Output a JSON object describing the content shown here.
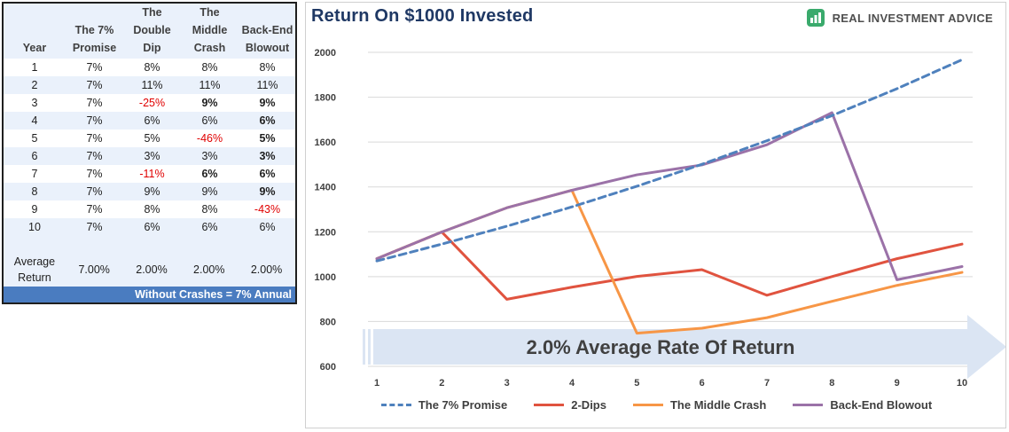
{
  "table": {
    "headers": [
      {
        "lines": [
          "Year"
        ]
      },
      {
        "lines": [
          "The 7%",
          "Promise"
        ]
      },
      {
        "lines": [
          "The",
          "Double",
          "Dip"
        ]
      },
      {
        "lines": [
          "The",
          "Middle",
          "Crash"
        ]
      },
      {
        "lines": [
          "Back-End",
          "Blowout"
        ]
      }
    ],
    "rows": [
      {
        "year": "1",
        "promise": "7%",
        "double_dip": "8%",
        "middle_crash": "8%",
        "back_end": "8%"
      },
      {
        "year": "2",
        "promise": "7%",
        "double_dip": "11%",
        "middle_crash": "11%",
        "back_end": "11%"
      },
      {
        "year": "3",
        "promise": "7%",
        "double_dip": "-25%",
        "middle_crash": "9%",
        "back_end": "9%"
      },
      {
        "year": "4",
        "promise": "7%",
        "double_dip": "6%",
        "middle_crash": "6%",
        "back_end": "6%"
      },
      {
        "year": "5",
        "promise": "7%",
        "double_dip": "5%",
        "middle_crash": "-46%",
        "back_end": "5%"
      },
      {
        "year": "6",
        "promise": "7%",
        "double_dip": "3%",
        "middle_crash": "3%",
        "back_end": "3%"
      },
      {
        "year": "7",
        "promise": "7%",
        "double_dip": "-11%",
        "middle_crash": "6%",
        "back_end": "6%"
      },
      {
        "year": "8",
        "promise": "7%",
        "double_dip": "9%",
        "middle_crash": "9%",
        "back_end": "9%"
      },
      {
        "year": "9",
        "promise": "7%",
        "double_dip": "8%",
        "middle_crash": "8%",
        "back_end": "-43%"
      },
      {
        "year": "10",
        "promise": "7%",
        "double_dip": "6%",
        "middle_crash": "6%",
        "back_end": "6%"
      }
    ],
    "average": {
      "label_lines": [
        "Average",
        "Return"
      ],
      "promise": "7.00%",
      "double_dip": "2.00%",
      "middle_crash": "2.00%",
      "back_end": "2.00%"
    },
    "footer": "Without Crashes = 7% Annual",
    "colors": {
      "negative": "#e00000",
      "footer_bg": "#4a7cc0",
      "band": "#eaf1fb"
    }
  },
  "brand": {
    "name": "REAL INVESTMENT ADVICE",
    "icon": "bar-chart-logo-icon",
    "color": "#3aaa6c"
  },
  "chart_data": {
    "type": "line",
    "title": "Return On $1000 Invested",
    "annotation": "2.0% Average Rate Of Return",
    "x": [
      1,
      2,
      3,
      4,
      5,
      6,
      7,
      8,
      9,
      10
    ],
    "x_ticks": [
      "1",
      "2",
      "3",
      "4",
      "5",
      "6",
      "7",
      "8",
      "9",
      "10"
    ],
    "y_ticks": [
      "600",
      "800",
      "1000",
      "1200",
      "1400",
      "1600",
      "1800",
      "2000"
    ],
    "ylim": [
      600,
      2000
    ],
    "grid": "horizontal",
    "legend_position": "bottom",
    "series": [
      {
        "name": "The 7% Promise",
        "color": "#4f81bd",
        "dashed": true,
        "values": [
          1070,
          1145,
          1225,
          1311,
          1403,
          1501,
          1606,
          1718,
          1838,
          1967
        ]
      },
      {
        "name": "2-Dips",
        "color": "#e0533f",
        "dashed": false,
        "values": [
          1080,
          1199,
          899,
          953,
          1001,
          1031,
          917,
          1000,
          1080,
          1145
        ]
      },
      {
        "name": "The Middle Crash",
        "color": "#f79646",
        "dashed": false,
        "values": [
          1080,
          1199,
          1307,
          1385,
          748,
          770,
          817,
          890,
          961,
          1019
        ]
      },
      {
        "name": "Back-End Blowout",
        "color": "#9b72a8",
        "dashed": false,
        "values": [
          1080,
          1199,
          1307,
          1385,
          1454,
          1498,
          1588,
          1731,
          986,
          1045
        ]
      }
    ]
  }
}
